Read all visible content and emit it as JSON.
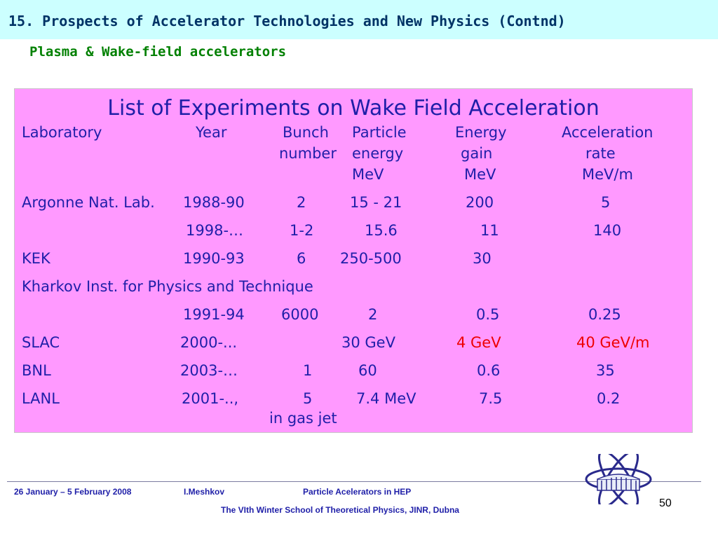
{
  "slide": {
    "title": "15. Prospects of Accelerator Technologies and New Physics (Contnd)",
    "subtitle": "Plasma & Wake-field accelerators"
  },
  "table": {
    "heading": "List of Experiments on Wake Field Acceleration",
    "headers": {
      "laboratory": "Laboratory",
      "year": "Year",
      "bunch": "Bunch",
      "bunch_2": "number",
      "particle": "Particle",
      "particle_2": "energy",
      "particle_3": "MeV",
      "energy": "Energy",
      "energy_2": "gain",
      "energy_3": "MeV",
      "accel": "Acceleration",
      "accel_2": "rate",
      "accel_3": "MeV/m"
    },
    "rows": [
      {
        "lab": "Argonne Nat. Lab.",
        "year": "1988-90",
        "bunch": "2",
        "particle": "15 - 21",
        "gain": "200",
        "rate": "5"
      },
      {
        "lab": "",
        "year": "1998-…",
        "bunch": "1-2",
        "particle": "15.6",
        "gain": "11",
        "rate": "140"
      },
      {
        "lab": "KEK",
        "year": "1990-93",
        "bunch": "6",
        "particle": "250-500",
        "gain": "30",
        "rate": ""
      },
      {
        "lab": "Kharkov Inst. for Physics and Technique",
        "year": "",
        "bunch": "",
        "particle": "",
        "gain": "",
        "rate": ""
      },
      {
        "lab": "",
        "year": "1991-94",
        "bunch": "6000",
        "particle": "2",
        "gain": "0.5",
        "rate": "0.25"
      },
      {
        "lab": "SLAC",
        "year": "2000-...",
        "bunch": "",
        "particle": "30 GeV",
        "gain": "4 GeV",
        "rate": "40 GeV/m"
      },
      {
        "lab": "BNL",
        "year": "2003-…",
        "bunch": "1",
        "particle": "60",
        "gain": "0.6",
        "rate": "35"
      },
      {
        "lab": "LANL",
        "year": "2001-..,",
        "bunch": "5",
        "particle": "7.4 MeV",
        "gain": "7.5",
        "rate": "0.2"
      }
    ],
    "note": "in gas jet"
  },
  "footer": {
    "dates": "26 January – 5 February 2008",
    "author": "I.Meshkov",
    "course": "Particle Acelerators in HEP",
    "school": "The VIth Winter School of Theoretical Physics, JINR, Dubna",
    "page": "50"
  },
  "colors": {
    "header_band": "#ccffff",
    "title": "#003366",
    "subtitle": "#008000",
    "panel": "#ff99ff",
    "table_text": "#1f1fa8",
    "highlight": "#ee0000"
  },
  "logo_icon": "jinr-logo-icon"
}
